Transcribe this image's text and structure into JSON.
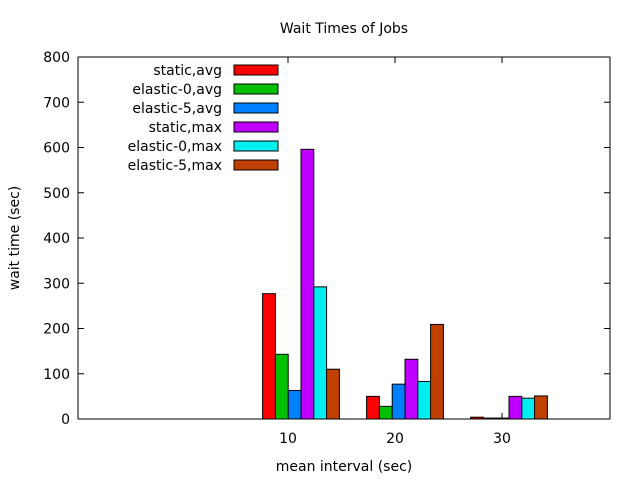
{
  "chart_data": {
    "type": "bar",
    "title": "Wait Times of Jobs",
    "xlabel": "mean interval (sec)",
    "ylabel": "wait time (sec)",
    "categories": [
      "10",
      "20",
      "30"
    ],
    "ylim": [
      0,
      800
    ],
    "yticks": [
      "0",
      "100",
      "200",
      "300",
      "400",
      "500",
      "600",
      "700",
      "800"
    ],
    "legend_position": "top-left",
    "grid": false,
    "series": [
      {
        "name": "static,avg",
        "color": "#ff0000",
        "values": [
          277,
          50,
          4
        ]
      },
      {
        "name": "elastic-0,avg",
        "color": "#00c000",
        "values": [
          143,
          28,
          2
        ]
      },
      {
        "name": "elastic-5,avg",
        "color": "#0080ff",
        "values": [
          63,
          77,
          2
        ]
      },
      {
        "name": "static,max",
        "color": "#c000ff",
        "values": [
          596,
          132,
          50
        ]
      },
      {
        "name": "elastic-0,max",
        "color": "#00eeee",
        "values": [
          292,
          83,
          46
        ]
      },
      {
        "name": "elastic-5,max",
        "color": "#c04000",
        "values": [
          110,
          209,
          51
        ]
      }
    ]
  }
}
